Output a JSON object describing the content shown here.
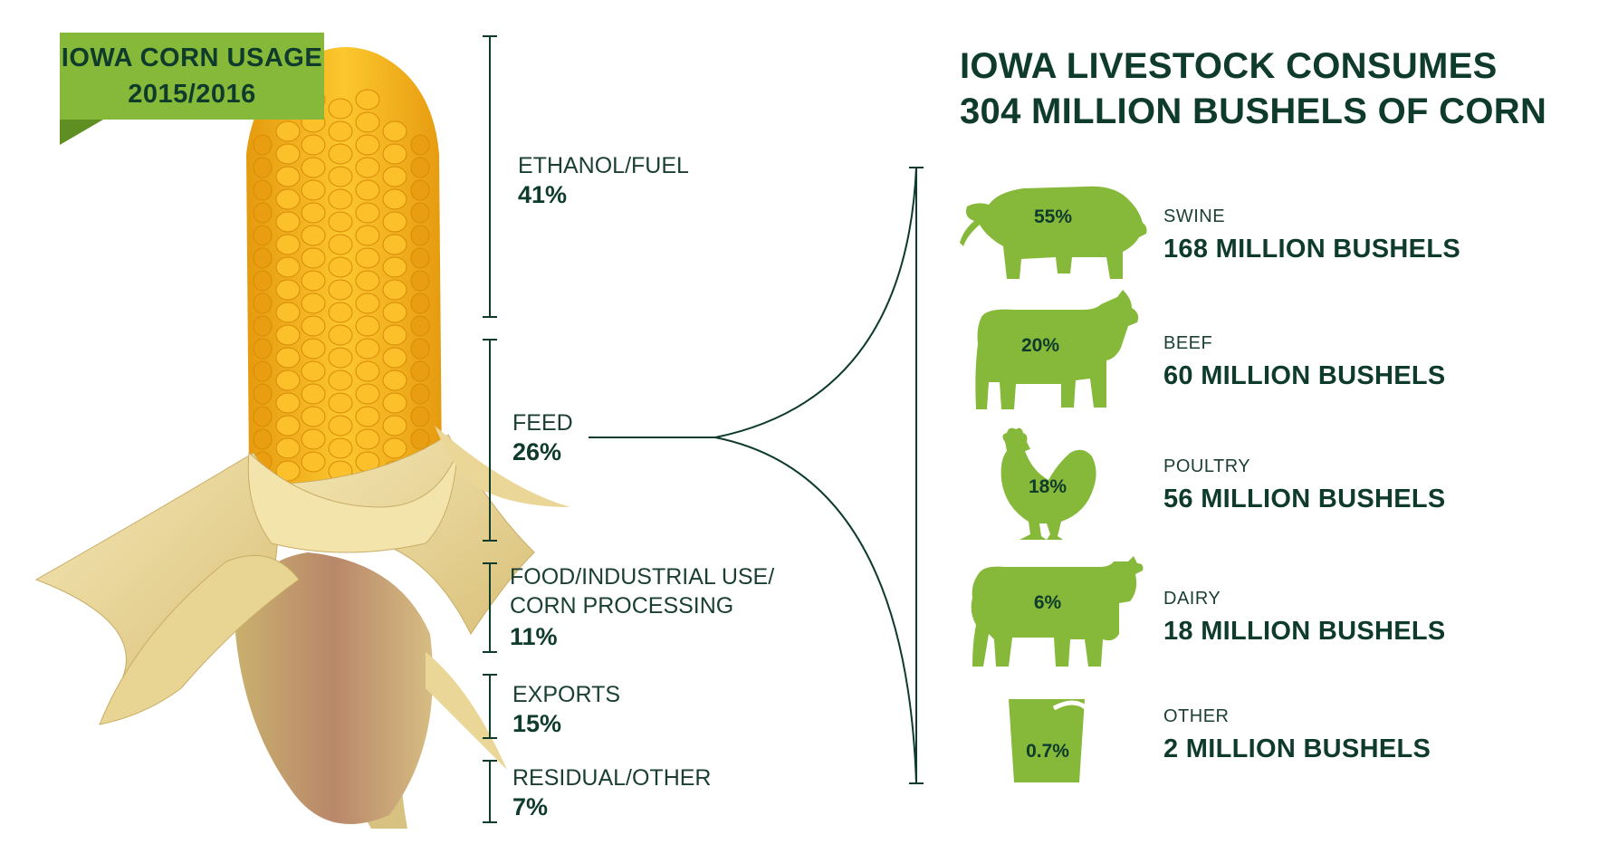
{
  "badge": {
    "line1": "IOWA CORN USAGE",
    "line2": "2015/2016"
  },
  "title": {
    "line1": "IOWA LIVESTOCK CONSUMES",
    "line2": "304 MILLION BUSHELS OF CORN"
  },
  "colors": {
    "green": "#86b83a",
    "dark_green": "#0e3b2c",
    "corn": "#f2b31c",
    "husk": "#eedc9c"
  },
  "chart_data": [
    {
      "type": "bar",
      "categories": [
        "ETHANOL/FUEL",
        "FEED",
        "FOOD/INDUSTRIAL USE/ CORN PROCESSING",
        "EXPORTS",
        "RESIDUAL/OTHER"
      ],
      "values": [
        41,
        26,
        11,
        15,
        7
      ],
      "value_labels": [
        "41%",
        "26%",
        "11%",
        "15%",
        "7%"
      ],
      "unit": "%"
    },
    {
      "type": "bar",
      "categories": [
        "SWINE",
        "BEEF",
        "POULTRY",
        "DAIRY",
        "OTHER"
      ],
      "series": [
        {
          "values": [
            55,
            20,
            18,
            6,
            0.7
          ],
          "labels": [
            "55%",
            "20%",
            "18%",
            "6%",
            "0.7%"
          ]
        },
        {
          "values": [
            168,
            60,
            56,
            18,
            2
          ],
          "labels": [
            "168 MILLION BUSHELS",
            "60 MILLION BUSHELS",
            "56 MILLION BUSHELS",
            "18 MILLION BUSHELS",
            "2 MILLION BUSHELS"
          ]
        }
      ]
    }
  ],
  "segments": [
    {
      "label1": "ETHANOL/FUEL",
      "label2": "",
      "value": "41%"
    },
    {
      "label1": "FEED",
      "label2": "",
      "value": "26%"
    },
    {
      "label1": "FOOD/INDUSTRIAL USE/",
      "label2": "CORN PROCESSING",
      "value": "11%"
    },
    {
      "label1": "EXPORTS",
      "label2": "",
      "value": "15%"
    },
    {
      "label1": "RESIDUAL/OTHER",
      "label2": "",
      "value": "7%"
    }
  ],
  "livestock": [
    {
      "name": "SWINE",
      "pct": "55%",
      "bushels": "168 MILLION BUSHELS",
      "icon": "pig-icon"
    },
    {
      "name": "BEEF",
      "pct": "20%",
      "bushels": "60 MILLION BUSHELS",
      "icon": "beef-cow-icon"
    },
    {
      "name": "POULTRY",
      "pct": "18%",
      "bushels": "56 MILLION BUSHELS",
      "icon": "chicken-icon"
    },
    {
      "name": "DAIRY",
      "pct": "6%",
      "bushels": "18 MILLION BUSHELS",
      "icon": "dairy-cow-icon"
    },
    {
      "name": "OTHER",
      "pct": "0.7%",
      "bushels": "2 MILLION BUSHELS",
      "icon": "bucket-icon"
    }
  ]
}
